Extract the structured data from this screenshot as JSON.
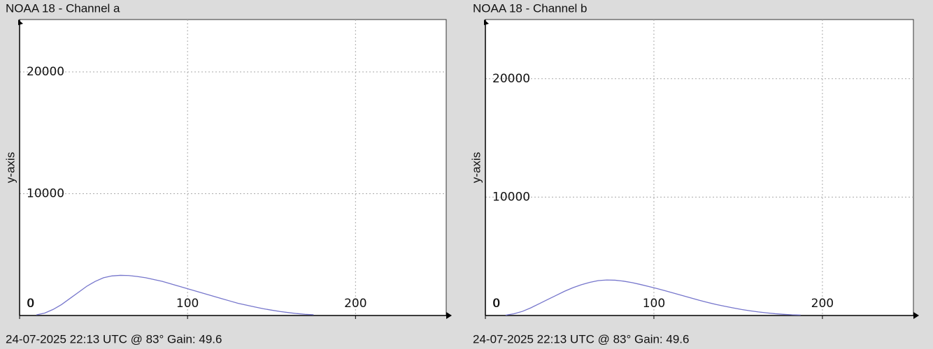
{
  "chart_data": [
    {
      "type": "line",
      "title": "NOAA 18 - Channel a",
      "caption": "24-07-2025 22:13 UTC @ 83° Gain: 49.6",
      "ylabel": "y-axis",
      "x": [
        10,
        15,
        20,
        25,
        30,
        35,
        40,
        45,
        50,
        55,
        60,
        65,
        70,
        75,
        80,
        85,
        90,
        95,
        100,
        105,
        110,
        115,
        120,
        125,
        130,
        135,
        140,
        145,
        150,
        155,
        160,
        165,
        170,
        175
      ],
      "values": [
        50,
        200,
        500,
        900,
        1400,
        1900,
        2400,
        2800,
        3100,
        3250,
        3300,
        3280,
        3200,
        3100,
        2950,
        2800,
        2600,
        2400,
        2200,
        2000,
        1800,
        1600,
        1400,
        1200,
        1000,
        850,
        700,
        560,
        440,
        330,
        240,
        160,
        100,
        60
      ],
      "color": "#7676cc",
      "xlim": [
        0,
        254
      ],
      "ylim": [
        0,
        24300
      ],
      "xticks": [
        0,
        100,
        200
      ],
      "yticks": [
        0,
        10000,
        20000
      ],
      "grid": true
    },
    {
      "type": "line",
      "title": "NOAA 18 - Channel b",
      "caption": "24-07-2025 22:13 UTC @ 83° Gain: 49.6",
      "ylabel": "y-axis",
      "x": [
        12,
        17,
        22,
        27,
        32,
        37,
        42,
        47,
        52,
        57,
        62,
        67,
        72,
        77,
        82,
        87,
        92,
        97,
        102,
        107,
        112,
        117,
        122,
        127,
        132,
        137,
        142,
        147,
        152,
        157,
        162,
        167,
        172,
        177,
        182,
        187
      ],
      "values": [
        30,
        150,
        350,
        650,
        1000,
        1350,
        1700,
        2050,
        2350,
        2600,
        2800,
        2950,
        3000,
        2980,
        2900,
        2780,
        2620,
        2450,
        2270,
        2080,
        1880,
        1680,
        1480,
        1280,
        1100,
        930,
        780,
        640,
        510,
        400,
        300,
        220,
        150,
        100,
        60,
        40
      ],
      "color": "#7676cc",
      "xlim": [
        0,
        254
      ],
      "ylim": [
        0,
        25000
      ],
      "xticks": [
        0,
        100,
        200
      ],
      "yticks": [
        0,
        10000,
        20000
      ],
      "grid": true
    }
  ]
}
